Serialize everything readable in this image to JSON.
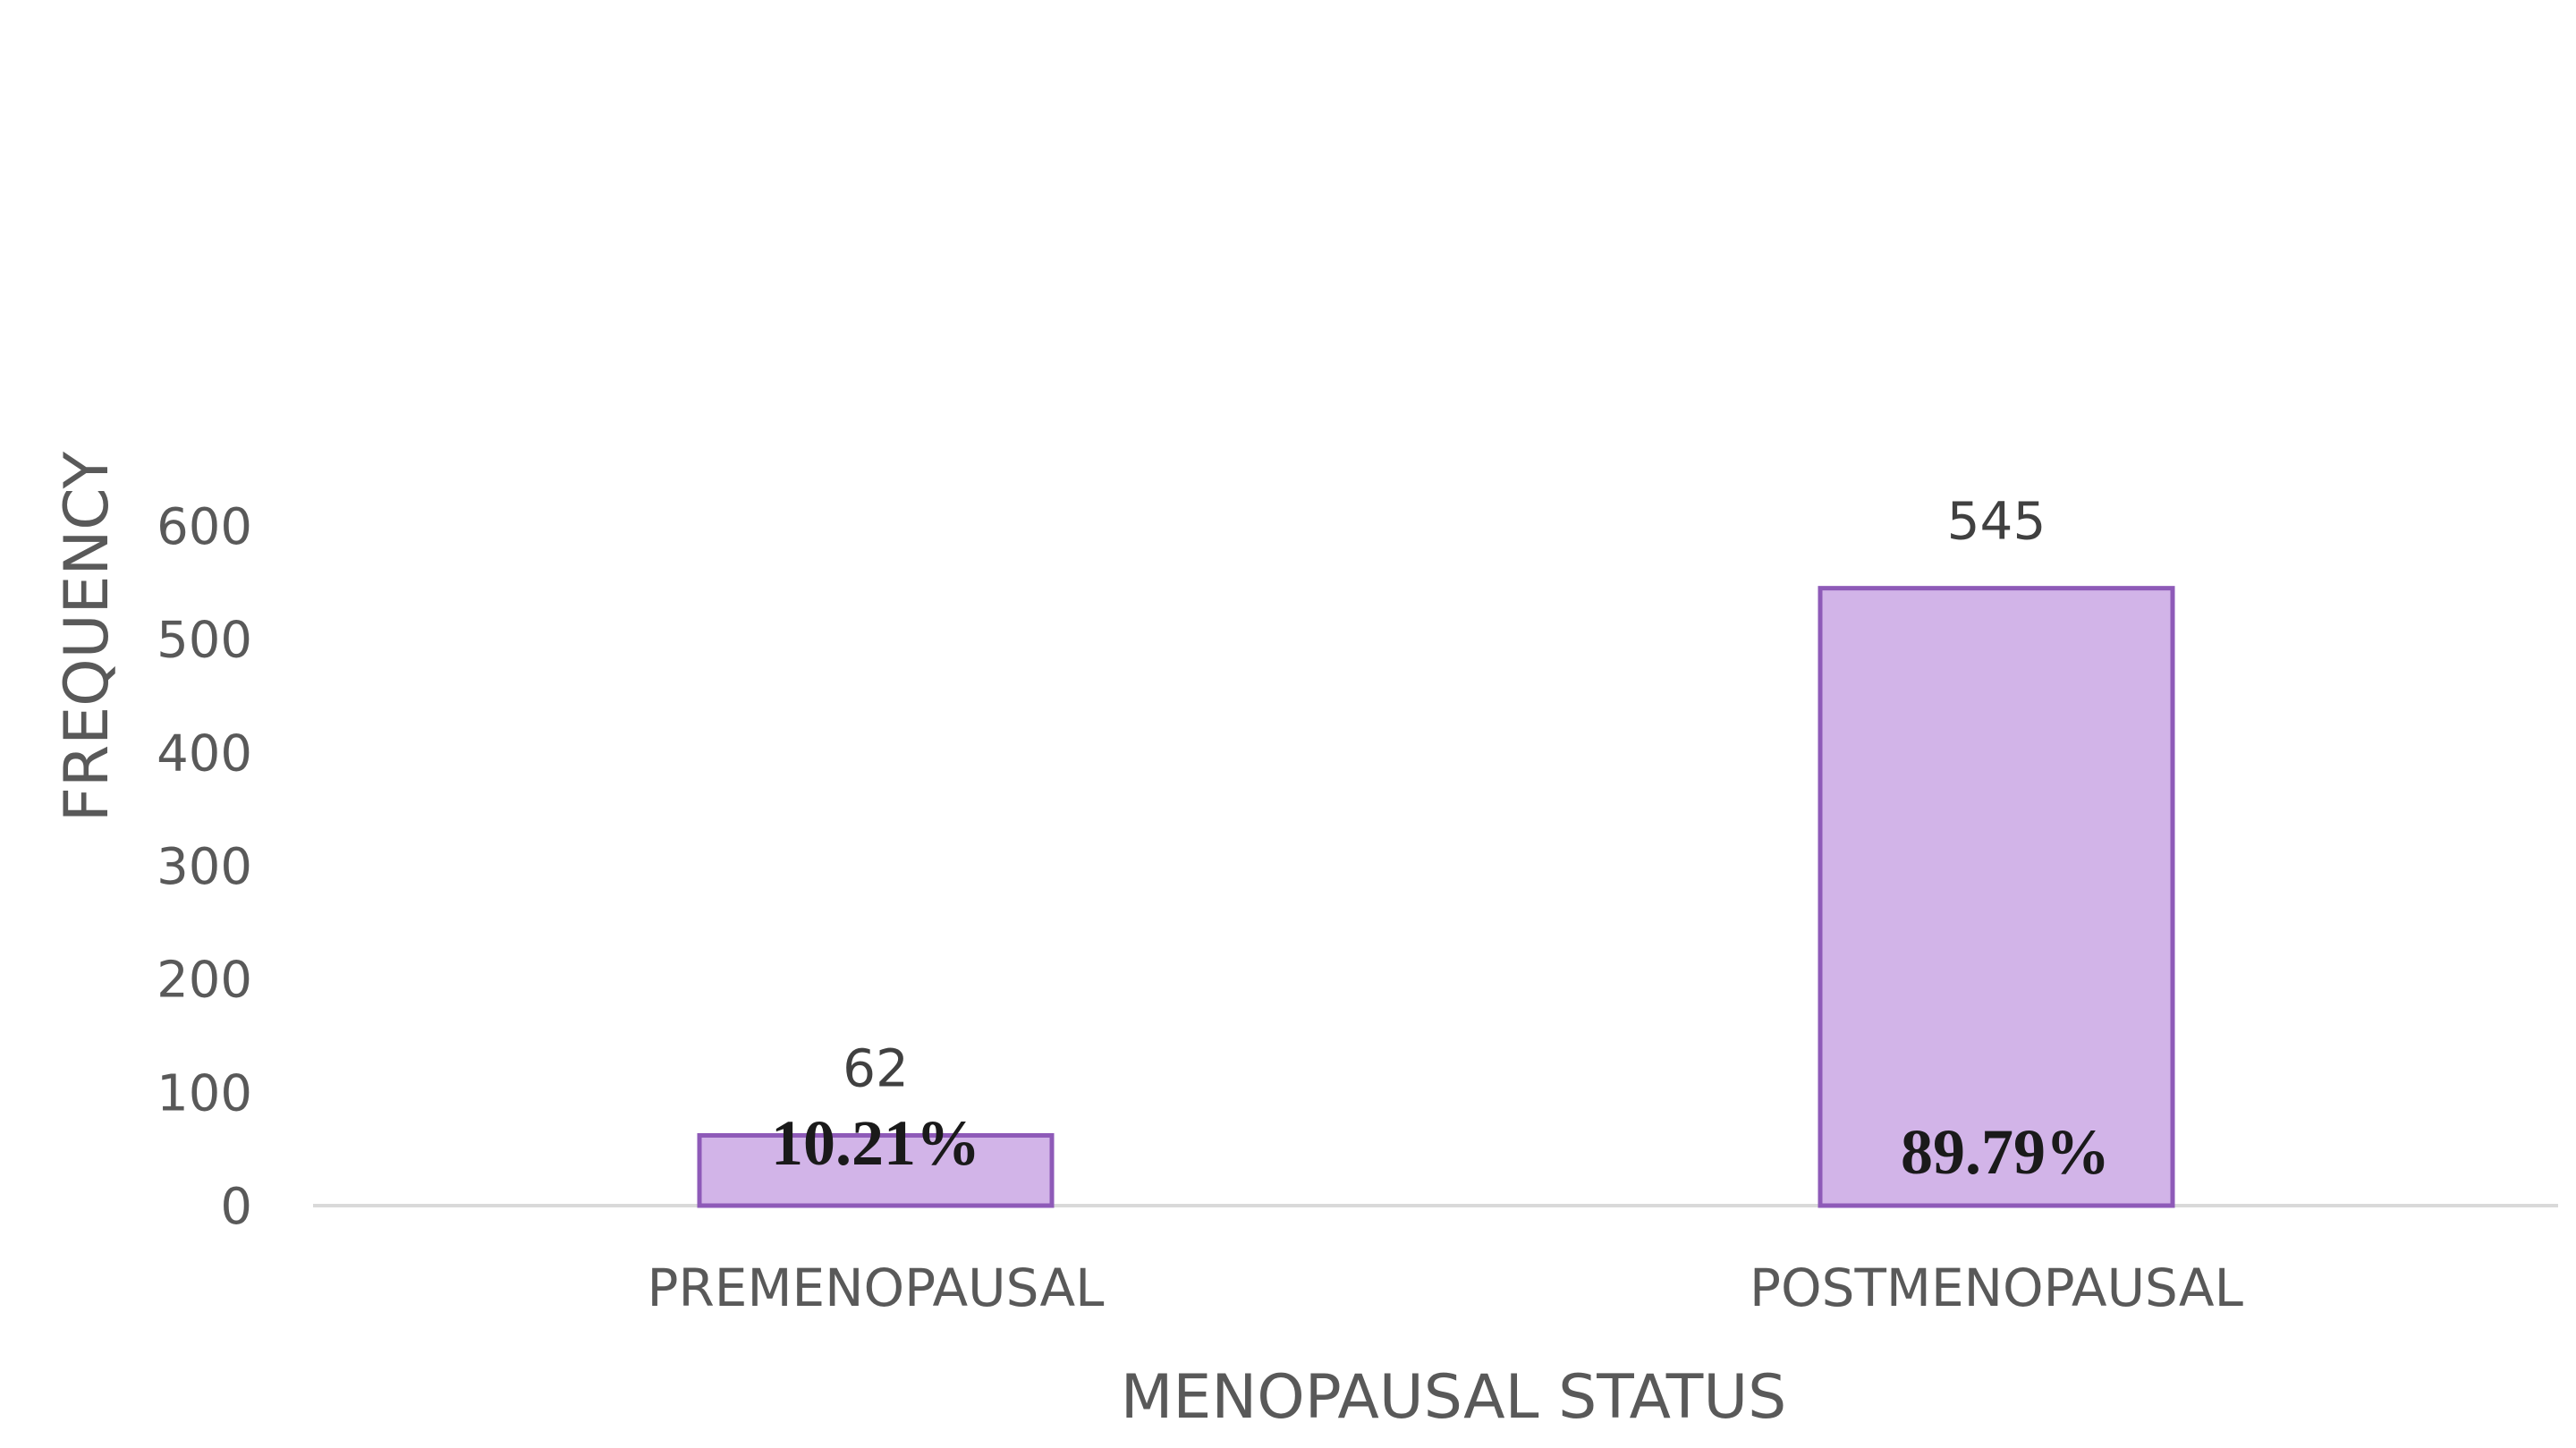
{
  "chart_data": {
    "type": "bar",
    "categories": [
      "PREMENOPAUSAL",
      "POSTMENOPAUSAL"
    ],
    "values": [
      62,
      545
    ],
    "data_labels": [
      "62",
      "545"
    ],
    "percent_labels": [
      "10.21%",
      "89.79%"
    ],
    "title": "",
    "xlabel": "MENOPAUSAL STATUS",
    "ylabel": "FREQUENCY",
    "ylim": [
      0,
      600
    ],
    "yticks": [
      0,
      100,
      200,
      300,
      400,
      500,
      600
    ],
    "grid": false,
    "legend": "none",
    "colors": {
      "bar_fill": "#d2b4e8",
      "bar_stroke": "#8e5ab8",
      "axis_line": "#d9d9d9",
      "text": "#595959"
    }
  }
}
